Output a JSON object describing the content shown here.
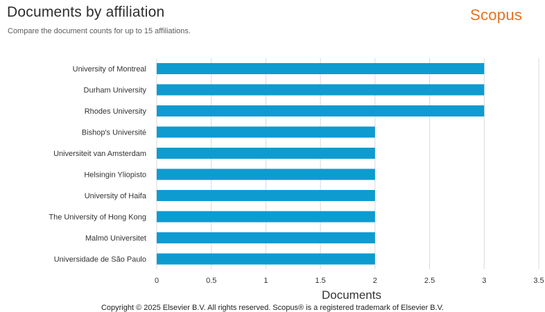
{
  "header": {
    "title": "Documents by affiliation",
    "subtitle": "Compare the document counts for up to 15 affiliations.",
    "logo_text": "Scopus"
  },
  "colors": {
    "bar": "#0e9bd0",
    "grid": "#d9d9d9",
    "logo": "#e9711c"
  },
  "chart_data": {
    "type": "bar",
    "orientation": "horizontal",
    "categories": [
      "University of Montreal",
      "Durham University",
      "Rhodes University",
      "Bishop's Université",
      "Universiteit van Amsterdam",
      "Helsingin Yliopisto",
      "University of Haifa",
      "The University of Hong Kong",
      "Malmö Universitet",
      "Universidade de São Paulo"
    ],
    "values": [
      3,
      3,
      3,
      2,
      2,
      2,
      2,
      2,
      2,
      2
    ],
    "xlabel": "Documents",
    "xlim": [
      0,
      3.5
    ],
    "xticks": [
      "0",
      "0.5",
      "1",
      "1.5",
      "2",
      "2.5",
      "3",
      "3.5"
    ],
    "grid": true
  },
  "footer": {
    "copyright": "Copyright © 2025 Elsevier B.V. All rights reserved. Scopus® is a registered trademark of Elsevier B.V."
  }
}
